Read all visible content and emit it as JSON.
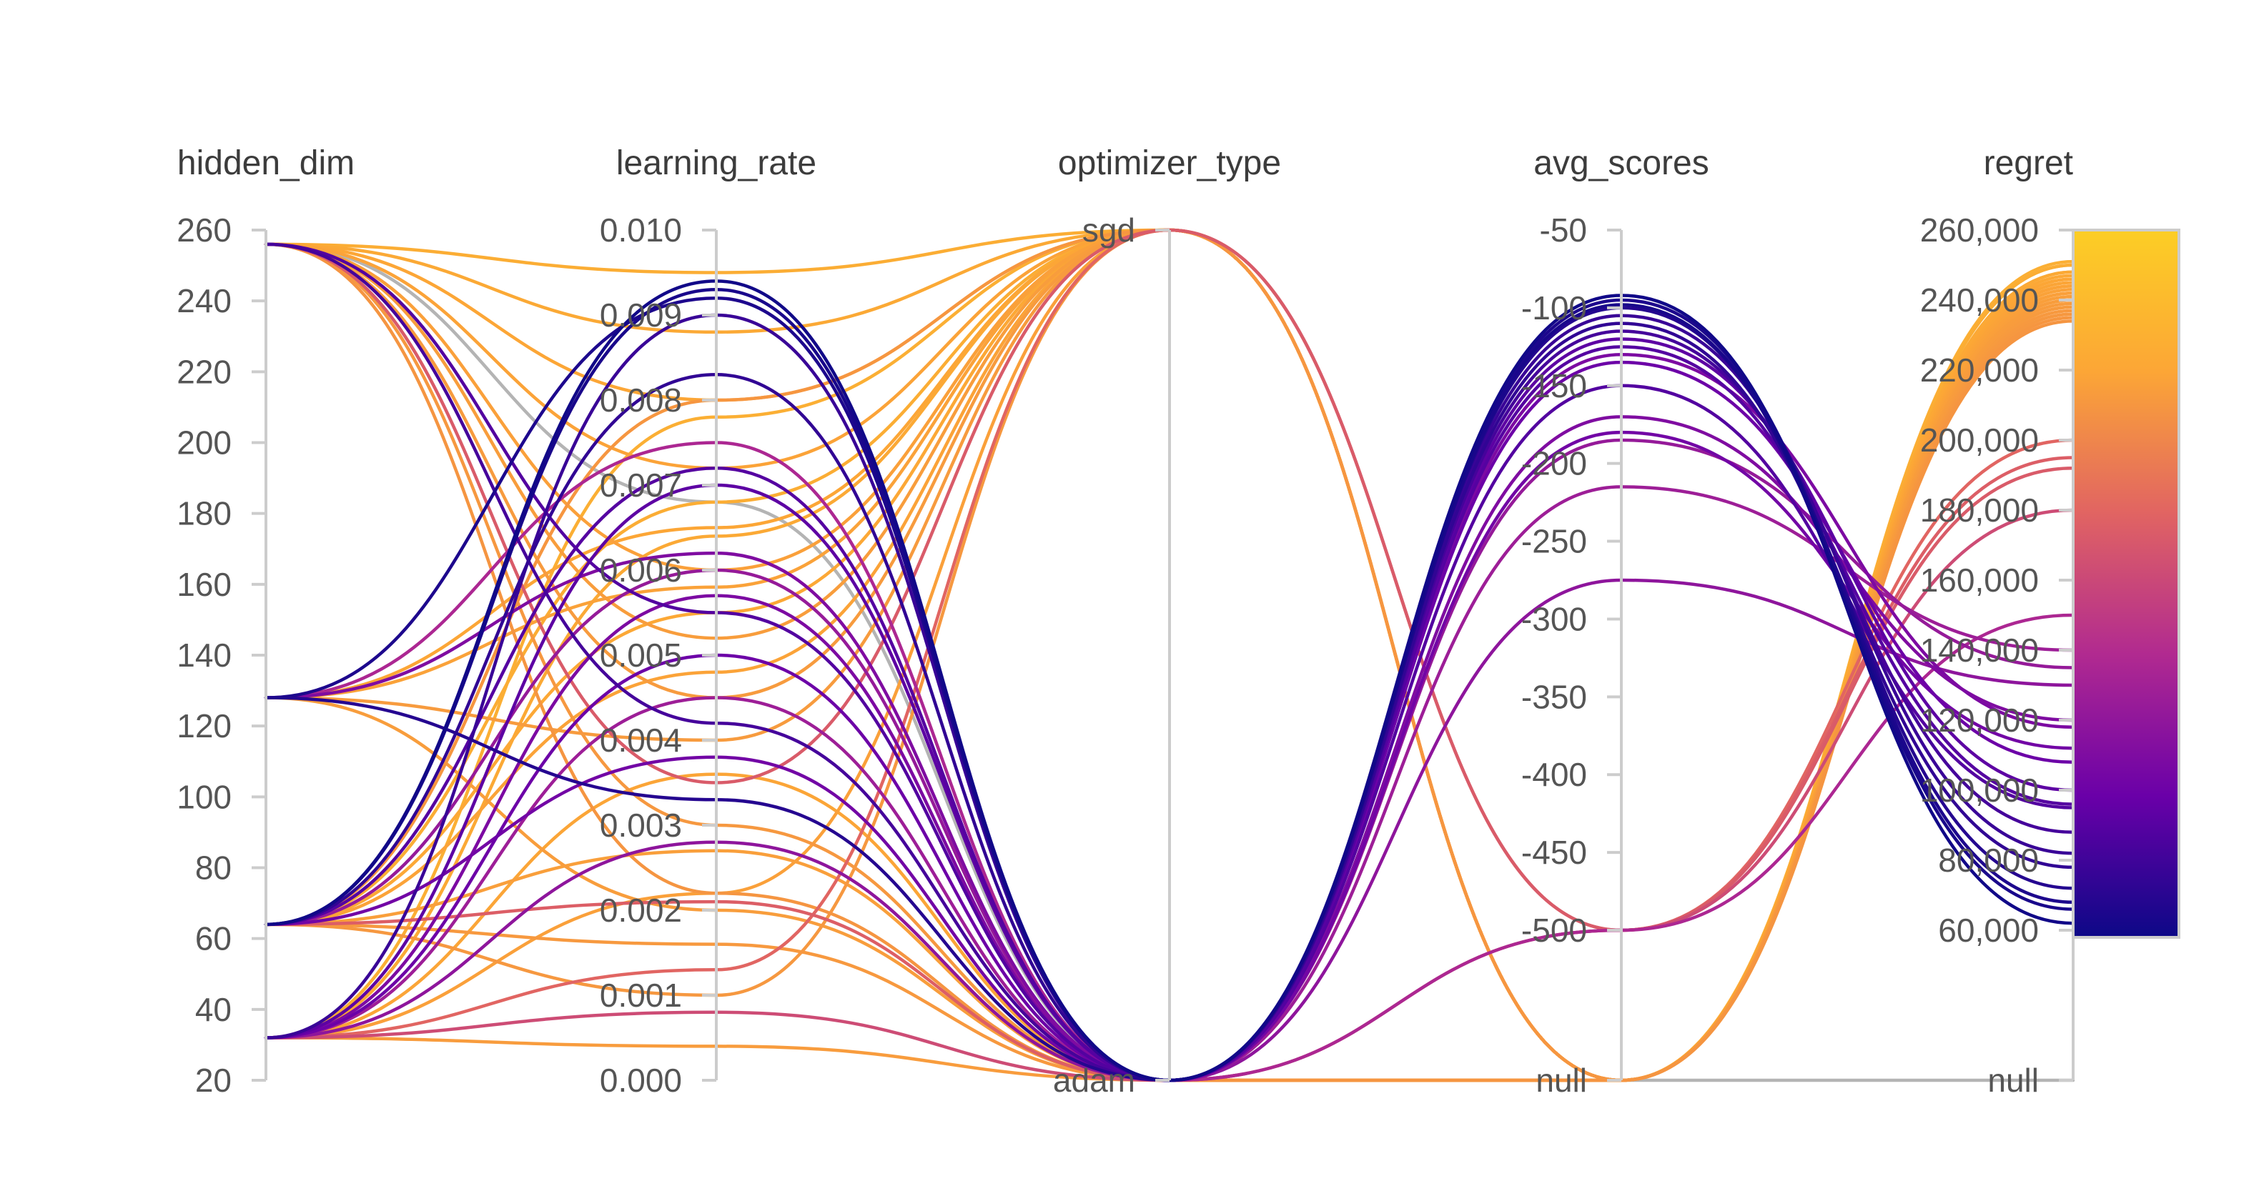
{
  "chart_data": {
    "type": "parallel_coordinates",
    "axes": [
      {
        "name": "hidden_dim",
        "ticks": [
          "20",
          "40",
          "60",
          "80",
          "100",
          "120",
          "140",
          "160",
          "180",
          "200",
          "220",
          "240",
          "260"
        ],
        "range": [
          20,
          260
        ]
      },
      {
        "name": "learning_rate",
        "ticks": [
          "0.000",
          "0.001",
          "0.002",
          "0.003",
          "0.004",
          "0.005",
          "0.006",
          "0.007",
          "0.008",
          "0.009",
          "0.010"
        ],
        "range": [
          0,
          0.01
        ]
      },
      {
        "name": "optimizer_type",
        "ticks": [
          "adam",
          "sgd"
        ],
        "categories": [
          "adam",
          "sgd"
        ]
      },
      {
        "name": "avg_scores",
        "ticks": [
          "-500",
          "-450",
          "-400",
          "-350",
          "-300",
          "-250",
          "-200",
          "-150",
          "-100",
          "-50"
        ],
        "null_label": "null",
        "range": [
          -500,
          -50
        ]
      },
      {
        "name": "regret",
        "ticks": [
          "60,000",
          "80,000",
          "100,000",
          "120,000",
          "140,000",
          "160,000",
          "180,000",
          "200,000",
          "220,000",
          "240,000",
          "260,000"
        ],
        "null_label": "null",
        "range": [
          60000,
          260000
        ]
      }
    ],
    "colorscale": {
      "metric": "regret",
      "range": [
        60000,
        260000
      ],
      "stops": [
        "#0d0887",
        "#6a00a8",
        "#b12a90",
        "#e16462",
        "#fca636",
        "#f0f921"
      ]
    },
    "null_line_color": "#b4b4b4",
    "runs": [
      {
        "hidden_dim": 256,
        "learning_rate": 0.0095,
        "optimizer_type": "sgd",
        "avg_scores": null,
        "regret": 250000
      },
      {
        "hidden_dim": 256,
        "learning_rate": 0.0088,
        "optimizer_type": "sgd",
        "avg_scores": null,
        "regret": 248000
      },
      {
        "hidden_dim": 256,
        "learning_rate": 0.008,
        "optimizer_type": "sgd",
        "avg_scores": null,
        "regret": 246000
      },
      {
        "hidden_dim": 256,
        "learning_rate": 0.0072,
        "optimizer_type": "sgd",
        "avg_scores": null,
        "regret": 244000
      },
      {
        "hidden_dim": 256,
        "learning_rate": 0.006,
        "optimizer_type": "sgd",
        "avg_scores": null,
        "regret": 242000
      },
      {
        "hidden_dim": 256,
        "learning_rate": 0.0052,
        "optimizer_type": "sgd",
        "avg_scores": null,
        "regret": 240000
      },
      {
        "hidden_dim": 256,
        "learning_rate": 0.0045,
        "optimizer_type": "sgd",
        "avg_scores": null,
        "regret": 238000
      },
      {
        "hidden_dim": 256,
        "learning_rate": 0.003,
        "optimizer_type": "adam",
        "avg_scores": null,
        "regret": 236000
      },
      {
        "hidden_dim": 256,
        "learning_rate": 0.0022,
        "optimizer_type": "adam",
        "avg_scores": null,
        "regret": 234000
      },
      {
        "hidden_dim": 256,
        "learning_rate": 0.0055,
        "optimizer_type": "adam",
        "avg_scores": -150,
        "regret": 95000
      },
      {
        "hidden_dim": 256,
        "learning_rate": 0.0068,
        "optimizer_type": "adam",
        "avg_scores": null,
        "regret": null
      },
      {
        "hidden_dim": 128,
        "learning_rate": 0.0092,
        "optimizer_type": "adam",
        "avg_scores": -95,
        "regret": 68000
      },
      {
        "hidden_dim": 128,
        "learning_rate": 0.0065,
        "optimizer_type": "sgd",
        "avg_scores": null,
        "regret": 246000
      },
      {
        "hidden_dim": 128,
        "learning_rate": 0.0058,
        "optimizer_type": "sgd",
        "avg_scores": null,
        "regret": 243000
      },
      {
        "hidden_dim": 128,
        "learning_rate": 0.0033,
        "optimizer_type": "adam",
        "avg_scores": -100,
        "regret": 72000
      },
      {
        "hidden_dim": 128,
        "learning_rate": 0.002,
        "optimizer_type": "adam",
        "avg_scores": null,
        "regret": 240000
      },
      {
        "hidden_dim": 128,
        "learning_rate": 0.0062,
        "optimizer_type": "adam",
        "avg_scores": -170,
        "regret": 120000
      },
      {
        "hidden_dim": 128,
        "learning_rate": 0.004,
        "optimizer_type": "sgd",
        "avg_scores": null,
        "regret": 238000
      },
      {
        "hidden_dim": 64,
        "learning_rate": 0.0094,
        "optimizer_type": "adam",
        "avg_scores": -92,
        "regret": 62000
      },
      {
        "hidden_dim": 64,
        "learning_rate": 0.0093,
        "optimizer_type": "adam",
        "avg_scores": -98,
        "regret": 66000
      },
      {
        "hidden_dim": 64,
        "learning_rate": 0.0083,
        "optimizer_type": "adam",
        "avg_scores": -110,
        "regret": 78000
      },
      {
        "hidden_dim": 64,
        "learning_rate": 0.0072,
        "optimizer_type": "adam",
        "avg_scores": -125,
        "regret": 96000
      },
      {
        "hidden_dim": 64,
        "learning_rate": 0.0068,
        "optimizer_type": "sgd",
        "avg_scores": null,
        "regret": 250000
      },
      {
        "hidden_dim": 64,
        "learning_rate": 0.0055,
        "optimizer_type": "sgd",
        "avg_scores": null,
        "regret": 247000
      },
      {
        "hidden_dim": 64,
        "learning_rate": 0.0048,
        "optimizer_type": "sgd",
        "avg_scores": null,
        "regret": 244000
      },
      {
        "hidden_dim": 64,
        "learning_rate": 0.0038,
        "optimizer_type": "adam",
        "avg_scores": -180,
        "regret": 112000
      },
      {
        "hidden_dim": 64,
        "learning_rate": 0.0027,
        "optimizer_type": "adam",
        "avg_scores": null,
        "regret": 241000
      },
      {
        "hidden_dim": 64,
        "learning_rate": 0.0021,
        "optimizer_type": "adam",
        "avg_scores": -500,
        "regret": 195000
      },
      {
        "hidden_dim": 64,
        "learning_rate": 0.0016,
        "optimizer_type": "adam",
        "avg_scores": null,
        "regret": 237000
      },
      {
        "hidden_dim": 64,
        "learning_rate": 0.008,
        "optimizer_type": "sgd",
        "avg_scores": null,
        "regret": 235000
      },
      {
        "hidden_dim": 32,
        "learning_rate": 0.009,
        "optimizer_type": "adam",
        "avg_scores": -105,
        "regret": 82000
      },
      {
        "hidden_dim": 32,
        "learning_rate": 0.0078,
        "optimizer_type": "sgd",
        "avg_scores": null,
        "regret": 251000
      },
      {
        "hidden_dim": 32,
        "learning_rate": 0.007,
        "optimizer_type": "adam",
        "avg_scores": -120,
        "regret": 100000
      },
      {
        "hidden_dim": 32,
        "learning_rate": 0.0064,
        "optimizer_type": "sgd",
        "avg_scores": null,
        "regret": 248000
      },
      {
        "hidden_dim": 32,
        "learning_rate": 0.005,
        "optimizer_type": "adam",
        "avg_scores": -135,
        "regret": 108000
      },
      {
        "hidden_dim": 32,
        "learning_rate": 0.0045,
        "optimizer_type": "adam",
        "avg_scores": -215,
        "regret": 140000
      },
      {
        "hidden_dim": 32,
        "learning_rate": 0.0036,
        "optimizer_type": "adam",
        "avg_scores": null,
        "regret": 245000
      },
      {
        "hidden_dim": 32,
        "learning_rate": 0.0028,
        "optimizer_type": "adam",
        "avg_scores": -275,
        "regret": 130000
      },
      {
        "hidden_dim": 32,
        "learning_rate": 0.0022,
        "optimizer_type": "sgd",
        "avg_scores": null,
        "regret": 242000
      },
      {
        "hidden_dim": 32,
        "learning_rate": 0.0013,
        "optimizer_type": "sgd",
        "avg_scores": -500,
        "regret": 200000
      },
      {
        "hidden_dim": 32,
        "learning_rate": 0.0008,
        "optimizer_type": "adam",
        "avg_scores": -500,
        "regret": 180000
      },
      {
        "hidden_dim": 32,
        "learning_rate": 0.0004,
        "optimizer_type": "adam",
        "avg_scores": null,
        "regret": 239000
      },
      {
        "hidden_dim": 256,
        "learning_rate": 0.0042,
        "optimizer_type": "adam",
        "avg_scores": -115,
        "regret": 88000
      },
      {
        "hidden_dim": 128,
        "learning_rate": 0.0075,
        "optimizer_type": "adam",
        "avg_scores": -500,
        "regret": 150000
      },
      {
        "hidden_dim": 64,
        "learning_rate": 0.006,
        "optimizer_type": "adam",
        "avg_scores": -185,
        "regret": 135000
      },
      {
        "hidden_dim": 32,
        "learning_rate": 0.0057,
        "optimizer_type": "adam",
        "avg_scores": -130,
        "regret": 118000
      },
      {
        "hidden_dim": 256,
        "learning_rate": 0.0035,
        "optimizer_type": "sgd",
        "avg_scores": -500,
        "regret": 192000
      },
      {
        "hidden_dim": 64,
        "learning_rate": 0.001,
        "optimizer_type": "sgd",
        "avg_scores": null,
        "regret": 236000
      }
    ]
  }
}
